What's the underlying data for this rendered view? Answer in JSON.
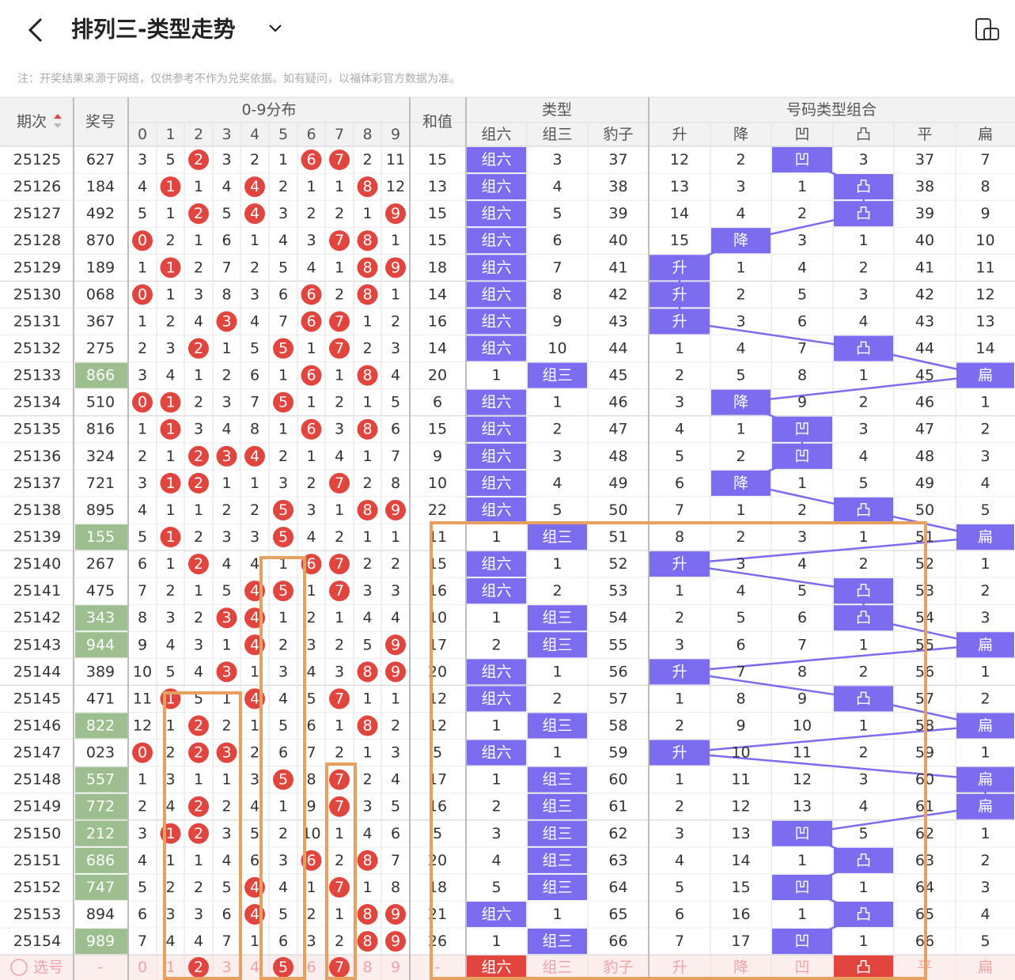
{
  "header": {
    "title": "排列三-类型走势",
    "note": "注：开奖结果来源于网络，仅供参考不作为兑奖依据。如有疑问，以福体彩官方数据为准。"
  },
  "table": {
    "columns": {
      "period": "期次",
      "number": "奖号",
      "distribution": "0-9分布",
      "digits": [
        "0",
        "1",
        "2",
        "3",
        "4",
        "5",
        "6",
        "7",
        "8",
        "9"
      ],
      "sum": "和值",
      "type": "类型",
      "type_cols": [
        "组六",
        "组三",
        "豹子"
      ],
      "combo": "号码类型组合",
      "combo_cols": [
        "升",
        "降",
        "凹",
        "凸",
        "平",
        "扁"
      ]
    },
    "rows": [
      {
        "period": "25125",
        "number": "627",
        "dist": [
          3,
          5,
          2,
          3,
          2,
          1,
          6,
          7,
          2,
          11
        ],
        "sum": 15,
        "type": [
          "组六",
          3,
          37
        ],
        "combo": [
          12,
          2,
          "凹",
          3,
          37,
          7
        ]
      },
      {
        "period": "25126",
        "number": "184",
        "dist": [
          4,
          1,
          1,
          4,
          4,
          2,
          1,
          1,
          8,
          12
        ],
        "sum": 13,
        "type": [
          "组六",
          4,
          38
        ],
        "combo": [
          13,
          3,
          1,
          "凸",
          38,
          8
        ]
      },
      {
        "period": "25127",
        "number": "492",
        "dist": [
          5,
          1,
          2,
          5,
          4,
          3,
          2,
          2,
          1,
          9
        ],
        "sum": 15,
        "type": [
          "组六",
          5,
          39
        ],
        "combo": [
          14,
          4,
          2,
          "凸",
          39,
          9
        ]
      },
      {
        "period": "25128",
        "number": "870",
        "dist": [
          0,
          2,
          1,
          6,
          1,
          4,
          3,
          7,
          8,
          1
        ],
        "sum": 15,
        "type": [
          "组六",
          6,
          40
        ],
        "combo": [
          15,
          "降",
          3,
          1,
          40,
          10
        ]
      },
      {
        "period": "25129",
        "number": "189",
        "dist": [
          1,
          1,
          2,
          7,
          2,
          5,
          4,
          1,
          8,
          9
        ],
        "sum": 18,
        "type": [
          "组六",
          7,
          41
        ],
        "combo": [
          "升",
          1,
          4,
          2,
          41,
          11
        ]
      },
      {
        "period": "25130",
        "number": "068",
        "dist": [
          0,
          1,
          3,
          8,
          3,
          6,
          6,
          2,
          8,
          1
        ],
        "sum": 14,
        "type": [
          "组六",
          8,
          42
        ],
        "combo": [
          "升",
          2,
          5,
          3,
          42,
          12
        ]
      },
      {
        "period": "25131",
        "number": "367",
        "dist": [
          1,
          2,
          4,
          3,
          4,
          7,
          6,
          7,
          1,
          2
        ],
        "sum": 16,
        "type": [
          "组六",
          9,
          43
        ],
        "combo": [
          "升",
          3,
          6,
          4,
          43,
          13
        ]
      },
      {
        "period": "25132",
        "number": "275",
        "dist": [
          2,
          3,
          2,
          1,
          5,
          5,
          1,
          7,
          2,
          3
        ],
        "sum": 14,
        "type": [
          "组六",
          10,
          44
        ],
        "combo": [
          1,
          4,
          7,
          "凸",
          44,
          14
        ]
      },
      {
        "period": "25133",
        "number": "866",
        "dist": [
          3,
          4,
          1,
          2,
          6,
          1,
          6,
          1,
          8,
          4
        ],
        "sum": 20,
        "type": [
          1,
          "组三",
          45
        ],
        "combo": [
          2,
          5,
          8,
          1,
          45,
          "扁"
        ]
      },
      {
        "period": "25134",
        "number": "510",
        "dist": [
          0,
          1,
          2,
          3,
          7,
          5,
          1,
          2,
          1,
          5
        ],
        "sum": 6,
        "type": [
          "组六",
          1,
          46
        ],
        "combo": [
          3,
          "降",
          9,
          2,
          46,
          1
        ]
      },
      {
        "period": "25135",
        "number": "816",
        "dist": [
          1,
          1,
          3,
          4,
          8,
          1,
          6,
          3,
          8,
          6
        ],
        "sum": 15,
        "type": [
          "组六",
          2,
          47
        ],
        "combo": [
          4,
          1,
          "凹",
          3,
          47,
          2
        ]
      },
      {
        "period": "25136",
        "number": "324",
        "dist": [
          2,
          1,
          2,
          3,
          4,
          2,
          1,
          4,
          1,
          7
        ],
        "sum": 9,
        "type": [
          "组六",
          3,
          48
        ],
        "combo": [
          5,
          2,
          "凹",
          4,
          48,
          3
        ]
      },
      {
        "period": "25137",
        "number": "721",
        "dist": [
          3,
          1,
          2,
          1,
          1,
          3,
          2,
          7,
          2,
          8
        ],
        "sum": 10,
        "type": [
          "组六",
          4,
          49
        ],
        "combo": [
          6,
          "降",
          1,
          5,
          49,
          4
        ]
      },
      {
        "period": "25138",
        "number": "895",
        "dist": [
          4,
          1,
          1,
          2,
          2,
          5,
          3,
          1,
          8,
          9
        ],
        "sum": 22,
        "type": [
          "组六",
          5,
          50
        ],
        "combo": [
          7,
          1,
          2,
          "凸",
          50,
          5
        ]
      },
      {
        "period": "25139",
        "number": "155",
        "dist": [
          5,
          1,
          2,
          3,
          3,
          5,
          4,
          2,
          1,
          1
        ],
        "sum": 11,
        "type": [
          1,
          "组三",
          51
        ],
        "combo": [
          8,
          2,
          3,
          1,
          51,
          "扁"
        ]
      },
      {
        "period": "25140",
        "number": "267",
        "dist": [
          6,
          1,
          2,
          4,
          4,
          1,
          6,
          7,
          2,
          2
        ],
        "sum": 15,
        "type": [
          "组六",
          1,
          52
        ],
        "combo": [
          "升",
          3,
          4,
          2,
          52,
          1
        ]
      },
      {
        "period": "25141",
        "number": "475",
        "dist": [
          7,
          2,
          1,
          5,
          4,
          5,
          1,
          7,
          3,
          3
        ],
        "sum": 16,
        "type": [
          "组六",
          2,
          53
        ],
        "combo": [
          1,
          4,
          5,
          "凸",
          53,
          2
        ]
      },
      {
        "period": "25142",
        "number": "343",
        "dist": [
          8,
          3,
          2,
          3,
          4,
          1,
          2,
          1,
          4,
          4
        ],
        "sum": 10,
        "type": [
          1,
          "组三",
          54
        ],
        "combo": [
          2,
          5,
          6,
          "凸",
          54,
          3
        ]
      },
      {
        "period": "25143",
        "number": "944",
        "dist": [
          9,
          4,
          3,
          1,
          4,
          2,
          3,
          2,
          5,
          9
        ],
        "sum": 17,
        "type": [
          2,
          "组三",
          55
        ],
        "combo": [
          3,
          6,
          7,
          1,
          55,
          "扁"
        ]
      },
      {
        "period": "25144",
        "number": "389",
        "dist": [
          10,
          5,
          4,
          3,
          1,
          3,
          4,
          3,
          8,
          9
        ],
        "sum": 20,
        "type": [
          "组六",
          1,
          56
        ],
        "combo": [
          "升",
          7,
          8,
          2,
          56,
          1
        ]
      },
      {
        "period": "25145",
        "number": "471",
        "dist": [
          11,
          1,
          5,
          1,
          4,
          4,
          5,
          7,
          1,
          1
        ],
        "sum": 12,
        "type": [
          "组六",
          2,
          57
        ],
        "combo": [
          1,
          8,
          9,
          "凸",
          57,
          2
        ]
      },
      {
        "period": "25146",
        "number": "822",
        "dist": [
          12,
          1,
          2,
          2,
          1,
          5,
          6,
          1,
          8,
          2
        ],
        "sum": 12,
        "type": [
          1,
          "组三",
          58
        ],
        "combo": [
          2,
          9,
          10,
          1,
          58,
          "扁"
        ]
      },
      {
        "period": "25147",
        "number": "023",
        "dist": [
          0,
          2,
          2,
          3,
          2,
          6,
          7,
          2,
          1,
          3
        ],
        "sum": 5,
        "type": [
          "组六",
          1,
          59
        ],
        "combo": [
          "升",
          10,
          11,
          2,
          59,
          1
        ]
      },
      {
        "period": "25148",
        "number": "557",
        "dist": [
          1,
          3,
          1,
          1,
          3,
          5,
          8,
          7,
          2,
          4
        ],
        "sum": 17,
        "type": [
          1,
          "组三",
          60
        ],
        "combo": [
          1,
          11,
          12,
          3,
          60,
          "扁"
        ]
      },
      {
        "period": "25149",
        "number": "772",
        "dist": [
          2,
          4,
          2,
          2,
          4,
          1,
          9,
          7,
          3,
          5
        ],
        "sum": 16,
        "type": [
          2,
          "组三",
          61
        ],
        "combo": [
          2,
          12,
          13,
          4,
          61,
          "扁"
        ]
      },
      {
        "period": "25150",
        "number": "212",
        "dist": [
          3,
          1,
          2,
          3,
          5,
          2,
          10,
          1,
          4,
          6
        ],
        "sum": 5,
        "type": [
          3,
          "组三",
          62
        ],
        "combo": [
          3,
          13,
          "凹",
          5,
          62,
          1
        ]
      },
      {
        "period": "25151",
        "number": "686",
        "dist": [
          4,
          1,
          1,
          4,
          6,
          3,
          6,
          2,
          8,
          7
        ],
        "sum": 20,
        "type": [
          4,
          "组三",
          63
        ],
        "combo": [
          4,
          14,
          1,
          "凸",
          63,
          2
        ]
      },
      {
        "period": "25152",
        "number": "747",
        "dist": [
          5,
          2,
          2,
          5,
          4,
          4,
          1,
          7,
          1,
          8
        ],
        "sum": 18,
        "type": [
          5,
          "组三",
          64
        ],
        "combo": [
          5,
          15,
          "凹",
          1,
          64,
          3
        ]
      },
      {
        "period": "25153",
        "number": "894",
        "dist": [
          6,
          3,
          3,
          6,
          4,
          5,
          2,
          1,
          8,
          9
        ],
        "sum": 21,
        "type": [
          "组六",
          1,
          65
        ],
        "combo": [
          6,
          16,
          1,
          "凸",
          65,
          4
        ]
      },
      {
        "period": "25154",
        "number": "989",
        "dist": [
          7,
          4,
          4,
          7,
          1,
          6,
          3,
          2,
          8,
          9
        ],
        "sum": 26,
        "type": [
          1,
          "组三",
          66
        ],
        "combo": [
          7,
          17,
          "凹",
          1,
          66,
          5
        ]
      }
    ],
    "footer": {
      "label": "选号",
      "number": "-",
      "digits": [
        "0",
        "1",
        "2",
        "3",
        "4",
        "5",
        "6",
        "7",
        "8",
        "9"
      ],
      "sum": "-",
      "type": [
        "组六",
        "组三",
        "豹子"
      ],
      "combo": [
        "升",
        "降",
        "凹",
        "凸",
        "平",
        "扁"
      ],
      "selected": {
        "digits": [
          "2",
          "5",
          "7"
        ],
        "type": [
          "组六"
        ],
        "combo": [
          "凸"
        ]
      }
    }
  }
}
